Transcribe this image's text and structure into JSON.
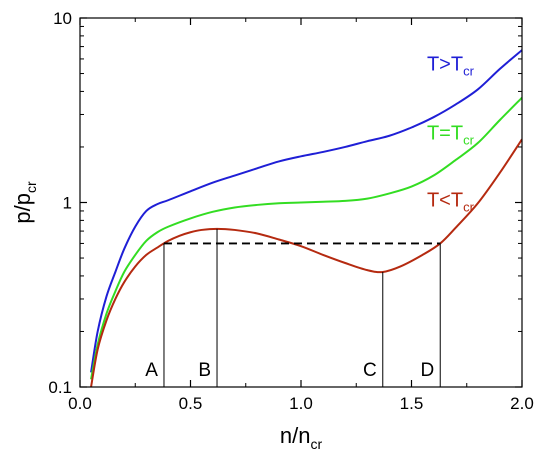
{
  "chart_data": {
    "type": "line",
    "xlabel": {
      "main": "n/n",
      "sub": "cr"
    },
    "ylabel": {
      "main": "p/p",
      "sub": "cr"
    },
    "xlim": [
      0,
      2
    ],
    "ylim": [
      0.1,
      10
    ],
    "yscale": "log",
    "grid": false,
    "xticks": [
      {
        "value": 0.0,
        "label": "0.0"
      },
      {
        "value": 0.5,
        "label": "0.5"
      },
      {
        "value": 1.0,
        "label": "1.0"
      },
      {
        "value": 1.5,
        "label": "1.5"
      },
      {
        "value": 2.0,
        "label": "2.0"
      }
    ],
    "yticks": [
      {
        "value": 0.1,
        "label": "0.1"
      },
      {
        "value": 1,
        "label": "1"
      },
      {
        "value": 10,
        "label": "10"
      }
    ],
    "series": [
      {
        "label_main": "T>T",
        "label_sub": "cr",
        "color": "#1f1fd6",
        "x": [
          0.05,
          0.08,
          0.12,
          0.16,
          0.2,
          0.25,
          0.3,
          0.35,
          0.4,
          0.5,
          0.6,
          0.7,
          0.8,
          0.9,
          1.0,
          1.1,
          1.2,
          1.3,
          1.4,
          1.5,
          1.6,
          1.7,
          1.8,
          1.9,
          2.0
        ],
        "y": [
          0.12,
          0.2,
          0.31,
          0.42,
          0.56,
          0.74,
          0.9,
          0.98,
          1.03,
          1.15,
          1.28,
          1.4,
          1.53,
          1.67,
          1.78,
          1.88,
          2.0,
          2.15,
          2.3,
          2.55,
          2.9,
          3.4,
          4.1,
          5.3,
          6.7
        ]
      },
      {
        "label_main": "T=T",
        "label_sub": "cr",
        "color": "#33dd22",
        "x": [
          0.05,
          0.08,
          0.12,
          0.16,
          0.2,
          0.25,
          0.3,
          0.35,
          0.4,
          0.5,
          0.6,
          0.7,
          0.8,
          0.9,
          1.0,
          1.1,
          1.2,
          1.3,
          1.4,
          1.5,
          1.6,
          1.7,
          1.8,
          1.9,
          2.0
        ],
        "y": [
          0.11,
          0.17,
          0.25,
          0.33,
          0.42,
          0.52,
          0.62,
          0.69,
          0.74,
          0.82,
          0.89,
          0.94,
          0.97,
          0.99,
          1.0,
          1.01,
          1.02,
          1.05,
          1.12,
          1.22,
          1.4,
          1.7,
          2.1,
          2.8,
          3.7
        ]
      },
      {
        "label_main": "T<T",
        "label_sub": "cr",
        "color": "#b52a10",
        "x": [
          0.05,
          0.08,
          0.12,
          0.16,
          0.2,
          0.25,
          0.3,
          0.35,
          0.4,
          0.45,
          0.5,
          0.55,
          0.62,
          0.7,
          0.8,
          0.9,
          1.0,
          1.1,
          1.2,
          1.3,
          1.37,
          1.45,
          1.55,
          1.63,
          1.7,
          1.8,
          1.9,
          2.0
        ],
        "y": [
          0.1,
          0.16,
          0.23,
          0.3,
          0.37,
          0.45,
          0.52,
          0.57,
          0.62,
          0.66,
          0.69,
          0.71,
          0.72,
          0.71,
          0.68,
          0.63,
          0.58,
          0.52,
          0.47,
          0.43,
          0.42,
          0.45,
          0.52,
          0.6,
          0.73,
          0.99,
          1.45,
          2.2
        ]
      }
    ],
    "tie_line": {
      "y": 0.6,
      "x1": 0.38,
      "x2": 1.63,
      "style": "dashed"
    },
    "annotations": [
      {
        "text": "A",
        "x": 0.38,
        "y_top": 0.6
      },
      {
        "text": "B",
        "x": 0.62,
        "y_top": 0.72
      },
      {
        "text": "C",
        "x": 1.37,
        "y_top": 0.42
      },
      {
        "text": "D",
        "x": 1.63,
        "y_top": 0.6
      }
    ]
  }
}
